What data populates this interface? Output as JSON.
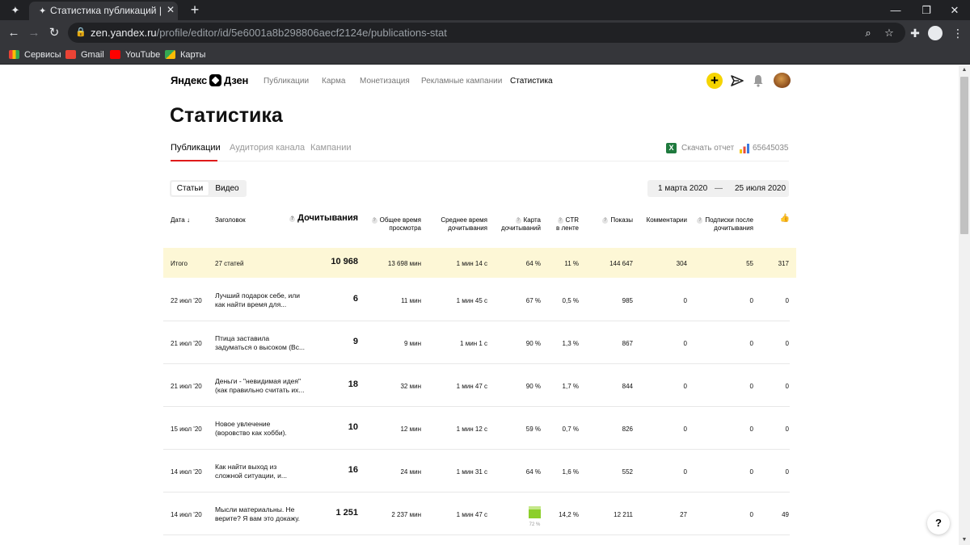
{
  "browser": {
    "tab_title": "Статистика публикаций | Яндекс.Дзен",
    "url_host": "zen.yandex.ru",
    "url_path": "/profile/editor/id/5e6001a8b298806aecf2124e/publications-stat",
    "bookmarks": [
      {
        "label": "Сервисы",
        "color": "#e8eaed"
      },
      {
        "label": "Gmail",
        "color": "#ea4335"
      },
      {
        "label": "YouTube",
        "color": "#ff0000"
      },
      {
        "label": "Карты",
        "color": "#34a853"
      }
    ]
  },
  "header": {
    "logo_left": "Яндекс",
    "logo_right": "Дзен",
    "nav": [
      "Публикации",
      "Карма",
      "Монетизация",
      "Рекламные кампании",
      "Статистика"
    ],
    "add_symbol": "+"
  },
  "page_title": "Статистика",
  "subtabs": [
    "Публикации",
    "Аудитория канала",
    "Кампании"
  ],
  "actions": {
    "excel_symbol": "X",
    "download_label": "Скачать отчет",
    "metrika_id": "65645035"
  },
  "content_toggle": [
    "Статьи",
    "Видео"
  ],
  "date_range": {
    "from": "1 марта 2020",
    "separator": "—",
    "to": "25 июля 2020"
  },
  "table": {
    "columns": {
      "date": "Дата ↓",
      "title": "Заголовок",
      "reads": "Дочитывания",
      "total_time_1": "Общее время",
      "total_time_2": "просмотра",
      "avg_time_1": "Среднее время",
      "avg_time_2": "дочитывания",
      "map_1": "Карта",
      "map_2": "дочитываний",
      "ctr_1": "CTR",
      "ctr_2": "в ленте",
      "views": "Показы",
      "comments": "Комментарии",
      "subs_1": "Подписки после",
      "subs_2": "дочитывания",
      "likes_icon": "👍",
      "help_mark": "?"
    },
    "total": {
      "date": "Итого",
      "title": "27 статей",
      "reads": "10 968",
      "total_time": "13 698 мин",
      "avg_time": "1 мин 14 с",
      "map": "64 %",
      "ctr": "11 %",
      "views": "144 647",
      "comments": "304",
      "subs": "55",
      "likes": "317"
    },
    "rows": [
      {
        "date": "22 июл '20",
        "title": "Лучший подарок себе, или как найти время для...",
        "reads": "6",
        "total_time": "11 мин",
        "avg_time": "1 мин 45 с",
        "map": "67 %",
        "ctr": "0,5 %",
        "views": "985",
        "comments": "0",
        "subs": "0",
        "likes": "0"
      },
      {
        "date": "21 июл '20",
        "title": "Птица заставила задуматься о высоком (Вс...",
        "reads": "9",
        "total_time": "9 мин",
        "avg_time": "1 мин 1 с",
        "map": "90 %",
        "ctr": "1,3 %",
        "views": "867",
        "comments": "0",
        "subs": "0",
        "likes": "0"
      },
      {
        "date": "21 июл '20",
        "title": "Деньги - \"невидимая идея\" (как правильно считать их...",
        "reads": "18",
        "total_time": "32 мин",
        "avg_time": "1 мин 47 с",
        "map": "90 %",
        "ctr": "1,7 %",
        "views": "844",
        "comments": "0",
        "subs": "0",
        "likes": "0"
      },
      {
        "date": "15 июл '20",
        "title": "Новое увлечение (воровство как хобби).",
        "reads": "10",
        "total_time": "12 мин",
        "avg_time": "1 мин 12 с",
        "map": "59 %",
        "ctr": "0,7 %",
        "views": "826",
        "comments": "0",
        "subs": "0",
        "likes": "0"
      },
      {
        "date": "14 июл '20",
        "title": "Как найти выход из сложной ситуации, и...",
        "reads": "16",
        "total_time": "24 мин",
        "avg_time": "1 мин 31 с",
        "map": "64 %",
        "ctr": "1,6 %",
        "views": "552",
        "comments": "0",
        "subs": "0",
        "likes": "0"
      },
      {
        "date": "14 июл '20",
        "title": "Мысли материальны. Не верите? Я вам это докажу.",
        "reads": "1 251",
        "total_time": "2 237 мин",
        "avg_time": "1 мин 47 с",
        "map": "72 %",
        "ctr": "14,2 %",
        "views": "12 211",
        "comments": "27",
        "subs": "0",
        "likes": "49"
      }
    ]
  },
  "help_button": "?"
}
